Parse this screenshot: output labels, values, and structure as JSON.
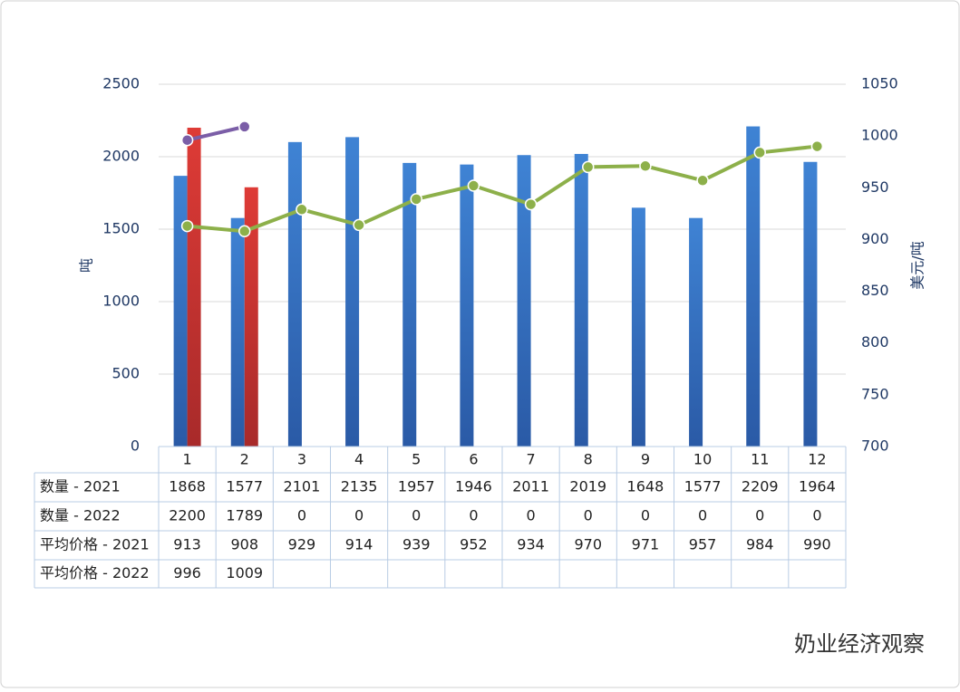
{
  "chart_data": {
    "type": "combo",
    "categories": [
      "1",
      "2",
      "3",
      "4",
      "5",
      "6",
      "7",
      "8",
      "9",
      "10",
      "11",
      "12"
    ],
    "ylabel": "吨",
    "y2label": "美元/吨",
    "ylim": [
      0,
      2500
    ],
    "yticks": [
      0,
      500,
      1000,
      1500,
      2000,
      2500
    ],
    "y2lim": [
      700,
      1050
    ],
    "y2ticks": [
      700,
      750,
      800,
      850,
      900,
      950,
      1000,
      1050
    ],
    "grid": true,
    "series": [
      {
        "name": "数量 - 2021",
        "type": "bar",
        "color": "#3a78c8",
        "values": [
          1868,
          1577,
          2101,
          2135,
          1957,
          1946,
          2011,
          2019,
          1648,
          1577,
          2209,
          1964
        ]
      },
      {
        "name": "数量 - 2022",
        "type": "bar",
        "color": "#d23a3a",
        "values": [
          2200,
          1789,
          0,
          0,
          0,
          0,
          0,
          0,
          0,
          0,
          0,
          0
        ]
      },
      {
        "name": "平均价格 - 2021",
        "type": "line",
        "axis": "y2",
        "color": "#8db04a",
        "values": [
          913,
          908,
          929,
          914,
          939,
          952,
          934,
          970,
          971,
          957,
          984,
          990
        ]
      },
      {
        "name": "平均价格 - 2022",
        "type": "line",
        "axis": "y2",
        "color": "#7b5ea7",
        "values": [
          996,
          1009,
          null,
          null,
          null,
          null,
          null,
          null,
          null,
          null,
          null,
          null
        ]
      }
    ],
    "watermark": "奶业经济观察"
  }
}
